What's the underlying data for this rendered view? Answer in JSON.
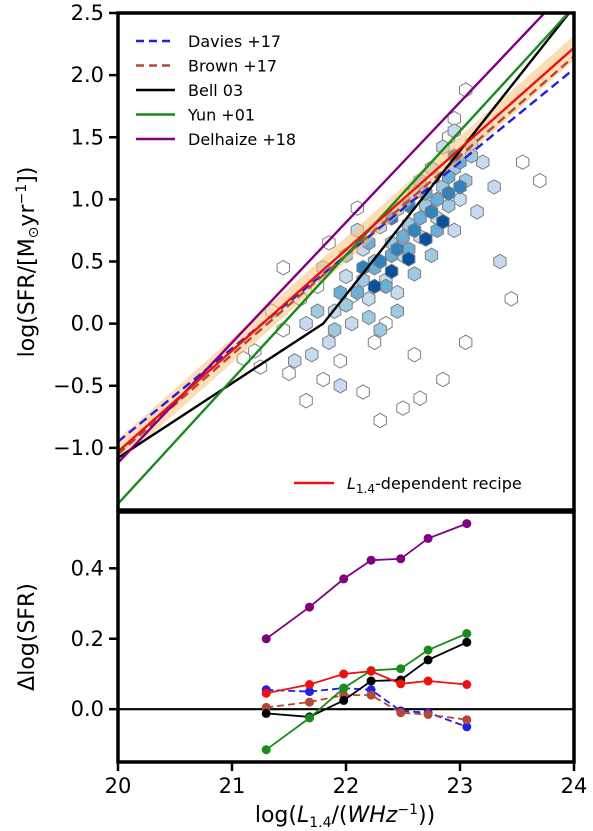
{
  "chart_data": [
    {
      "type": "scatter",
      "panel": "top",
      "ylabel": "log(SFR/[M⊙yr⁻¹])",
      "xlim": [
        20,
        24
      ],
      "ylim": [
        -1.5,
        2.5
      ],
      "yticks": [
        -1.0,
        -0.5,
        0.0,
        0.5,
        1.0,
        1.5,
        2.0,
        2.5
      ],
      "ytick_labels": [
        "−1.0",
        "−0.5",
        "0.0",
        "0.5",
        "1.0",
        "1.5",
        "2.0",
        "2.5"
      ],
      "legend_upper": {
        "placement": "top-left",
        "entries": [
          {
            "label": "Davies +17",
            "color": "#1f1fe6",
            "style": "dashed"
          },
          {
            "label": "Brown +17",
            "color": "#b5473a",
            "style": "dashed"
          },
          {
            "label": "Bell 03",
            "color": "#000000",
            "style": "solid"
          },
          {
            "label": "Yun +01",
            "color": "#1a8a1a",
            "style": "solid"
          },
          {
            "label": "Delhaize +18",
            "color": "#800080",
            "style": "solid"
          }
        ]
      },
      "legend_lower": {
        "placement": "bottom-right",
        "entries": [
          {
            "label_main": "L",
            "label_sub": "1.4",
            "label_rest": "-dependent recipe",
            "color": "#ee1111",
            "style": "solid"
          }
        ]
      },
      "relations": [
        {
          "name": "Davies +17",
          "color": "#1f1fe6",
          "style": "dashed",
          "points": [
            [
              20,
              -0.95
            ],
            [
              24,
              2.05
            ]
          ]
        },
        {
          "name": "Brown +17",
          "color": "#b5473a",
          "style": "dashed",
          "points": [
            [
              20,
              -1.05
            ],
            [
              24,
              2.15
            ]
          ]
        },
        {
          "name": "Bell 03",
          "color": "#000000",
          "style": "solid",
          "points": [
            [
              20,
              -1.08
            ],
            [
              21.8,
              0.0
            ],
            [
              24,
              2.55
            ]
          ]
        },
        {
          "name": "Yun +01",
          "color": "#1a8a1a",
          "style": "solid",
          "points": [
            [
              20,
              -1.45
            ],
            [
              24,
              2.55
            ]
          ]
        },
        {
          "name": "Delhaize +18",
          "color": "#800080",
          "style": "solid",
          "points": [
            [
              20,
              -1.12
            ],
            [
              24,
              2.75
            ]
          ]
        },
        {
          "name": "L1.4-dependent recipe",
          "color": "#ee1111",
          "style": "solid",
          "points": [
            [
              20,
              -1.03
            ],
            [
              24,
              2.22
            ]
          ]
        }
      ],
      "band": {
        "color": "#f7c27a",
        "half_width": 0.1
      },
      "hexbin": {
        "colors": [
          "#ffffff",
          "#c6dbef",
          "#9ecae1",
          "#6baed6",
          "#3182bd",
          "#08519c"
        ],
        "cells": [
          [
            21.2,
            -0.22,
            0
          ],
          [
            21.25,
            -0.35,
            0
          ],
          [
            21.1,
            -0.28,
            0
          ],
          [
            21.45,
            -0.05,
            0
          ],
          [
            21.5,
            -0.4,
            0
          ],
          [
            21.65,
            -0.62,
            0
          ],
          [
            21.8,
            -0.45,
            0
          ],
          [
            21.95,
            -0.3,
            0
          ],
          [
            22.15,
            -0.55,
            0
          ],
          [
            22.3,
            -0.78,
            0
          ],
          [
            22.5,
            -0.68,
            0
          ],
          [
            22.65,
            -0.6,
            0
          ],
          [
            22.85,
            -0.45,
            0
          ],
          [
            23.05,
            -0.15,
            0
          ],
          [
            23.45,
            0.2,
            0
          ],
          [
            23.7,
            1.15,
            0
          ],
          [
            23.55,
            1.3,
            0
          ],
          [
            23.05,
            1.88,
            0
          ],
          [
            22.95,
            1.65,
            0
          ],
          [
            22.9,
            1.5,
            0
          ],
          [
            21.6,
            0.2,
            0
          ],
          [
            21.85,
            0.65,
            0
          ],
          [
            22.1,
            0.93,
            0
          ],
          [
            22.05,
            0.22,
            0
          ],
          [
            22.35,
            0.0,
            0
          ],
          [
            21.45,
            0.45,
            0
          ],
          [
            21.75,
            0.3,
            0
          ],
          [
            22.6,
            -0.25,
            0
          ],
          [
            22.25,
            -0.15,
            0
          ],
          [
            21.35,
            0.1,
            0
          ],
          [
            21.9,
            0.1,
            1
          ],
          [
            22.0,
            0.38,
            1
          ],
          [
            22.15,
            0.6,
            1
          ],
          [
            22.3,
            0.78,
            1
          ],
          [
            22.45,
            0.92,
            1
          ],
          [
            22.6,
            1.05,
            1
          ],
          [
            22.75,
            1.25,
            1
          ],
          [
            22.85,
            1.42,
            1
          ],
          [
            22.95,
            1.55,
            1
          ],
          [
            23.1,
            1.45,
            1
          ],
          [
            23.2,
            1.3,
            1
          ],
          [
            23.3,
            1.1,
            1
          ],
          [
            23.0,
            1.0,
            1
          ],
          [
            22.8,
            0.85,
            1
          ],
          [
            22.65,
            0.7,
            1
          ],
          [
            22.5,
            0.55,
            1
          ],
          [
            22.35,
            0.35,
            1
          ],
          [
            22.2,
            0.2,
            1
          ],
          [
            22.05,
            0.0,
            1
          ],
          [
            21.85,
            -0.15,
            1
          ],
          [
            21.7,
            -0.25,
            1
          ],
          [
            21.55,
            -0.3,
            1
          ],
          [
            21.95,
            -0.5,
            1
          ],
          [
            22.45,
            0.25,
            1
          ],
          [
            22.95,
            0.75,
            1
          ],
          [
            23.15,
            0.9,
            1
          ],
          [
            23.35,
            0.5,
            1
          ],
          [
            21.65,
            0.0,
            1
          ],
          [
            21.8,
            0.45,
            1
          ],
          [
            22.1,
            0.75,
            1
          ],
          [
            22.0,
            0.15,
            2
          ],
          [
            22.15,
            0.35,
            2
          ],
          [
            22.25,
            0.5,
            2
          ],
          [
            22.4,
            0.65,
            2
          ],
          [
            22.55,
            0.8,
            2
          ],
          [
            22.7,
            0.95,
            2
          ],
          [
            22.85,
            1.1,
            2
          ],
          [
            22.95,
            1.25,
            2
          ],
          [
            23.05,
            1.15,
            2
          ],
          [
            22.75,
            0.55,
            2
          ],
          [
            22.6,
            0.4,
            2
          ],
          [
            22.45,
            0.1,
            2
          ],
          [
            22.3,
            -0.05,
            2
          ],
          [
            21.9,
            -0.05,
            2
          ],
          [
            22.0,
            0.55,
            2
          ],
          [
            22.65,
            1.15,
            2
          ],
          [
            23.1,
            1.35,
            2
          ],
          [
            22.9,
            0.95,
            2
          ],
          [
            22.2,
            0.05,
            2
          ],
          [
            21.75,
            0.1,
            2
          ],
          [
            22.1,
            0.25,
            3
          ],
          [
            22.25,
            0.45,
            3
          ],
          [
            22.4,
            0.55,
            3
          ],
          [
            22.5,
            0.7,
            3
          ],
          [
            22.65,
            0.85,
            3
          ],
          [
            22.8,
            1.0,
            3
          ],
          [
            22.9,
            1.18,
            3
          ],
          [
            22.55,
            0.6,
            3
          ],
          [
            22.35,
            0.3,
            3
          ],
          [
            22.8,
            0.75,
            3
          ],
          [
            23.0,
            1.3,
            3
          ],
          [
            22.7,
            1.05,
            3
          ],
          [
            21.95,
            0.25,
            3
          ],
          [
            22.2,
            0.65,
            3
          ],
          [
            22.3,
            0.5,
            4
          ],
          [
            22.45,
            0.6,
            4
          ],
          [
            22.6,
            0.75,
            4
          ],
          [
            22.75,
            0.9,
            4
          ],
          [
            22.9,
            1.05,
            4
          ],
          [
            22.4,
            0.85,
            4
          ],
          [
            22.15,
            0.45,
            4
          ],
          [
            22.55,
            0.95,
            4
          ],
          [
            23.0,
            1.1,
            4
          ],
          [
            22.4,
            0.42,
            5
          ],
          [
            22.55,
            0.52,
            5
          ],
          [
            22.7,
            0.68,
            5
          ],
          [
            22.85,
            0.82,
            5
          ],
          [
            22.25,
            0.3,
            5
          ],
          [
            22.95,
            1.35,
            5
          ]
        ]
      }
    },
    {
      "type": "line",
      "panel": "bottom",
      "xlabel_main": "log(L",
      "xlabel_sub": "1.4",
      "xlabel_rest": "/(WHz⁻¹))",
      "ylabel": "Δlog(SFR)",
      "xlim": [
        20,
        24
      ],
      "ylim": [
        -0.15,
        0.56
      ],
      "xticks": [
        20,
        21,
        22,
        23,
        24
      ],
      "xtick_labels": [
        "20",
        "21",
        "22",
        "23",
        "24"
      ],
      "yticks": [
        0.0,
        0.2,
        0.4
      ],
      "ytick_labels": [
        "0.0",
        "0.2",
        "0.4"
      ],
      "hline": 0.0,
      "x": [
        21.3,
        21.68,
        21.98,
        22.22,
        22.48,
        22.72,
        23.06
      ],
      "series": [
        {
          "name": "Davies +17",
          "color": "#1f1fe6",
          "style": "dashed",
          "values": [
            0.055,
            0.05,
            0.06,
            0.055,
            -0.005,
            -0.01,
            -0.05
          ]
        },
        {
          "name": "Brown +17",
          "color": "#b5473a",
          "style": "dashed",
          "values": [
            0.005,
            0.02,
            0.04,
            0.04,
            -0.01,
            -0.015,
            -0.03
          ]
        },
        {
          "name": "Bell 03",
          "color": "#000000",
          "style": "solid",
          "values": [
            -0.012,
            -0.022,
            0.025,
            0.08,
            0.083,
            0.14,
            0.19
          ]
        },
        {
          "name": "Yun +01",
          "color": "#1a8a1a",
          "style": "solid",
          "values": [
            -0.115,
            -0.025,
            0.06,
            0.11,
            0.115,
            0.168,
            0.215
          ]
        },
        {
          "name": "Delhaize +18",
          "color": "#800080",
          "style": "solid",
          "values": [
            0.2,
            0.29,
            0.37,
            0.423,
            0.427,
            0.485,
            0.527
          ]
        },
        {
          "name": "L1.4-dependent recipe",
          "color": "#ee1111",
          "style": "solid",
          "values": [
            0.045,
            0.07,
            0.1,
            0.108,
            0.072,
            0.08,
            0.07
          ]
        }
      ]
    }
  ]
}
